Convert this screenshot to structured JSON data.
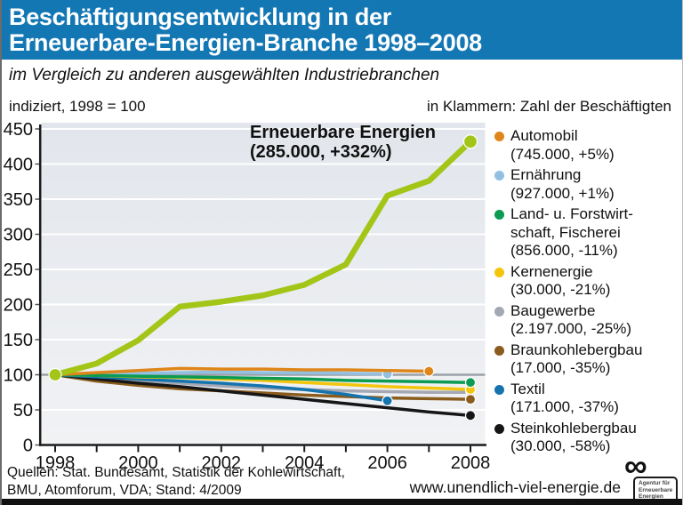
{
  "header": {
    "title_line1": "Beschäftigungsentwicklung in der",
    "title_line2": "Erneuerbare-Energien-Branche 1998–2008",
    "bg_color": "#1377b4"
  },
  "subtitle": "im Vergleich zu anderen ausgewählten Industriebranchen",
  "meta": {
    "left": "indiziert, 1998 = 100",
    "right": "in Klammern: Zahl  der Beschäftigten"
  },
  "annotation": {
    "line1": "Erneuerbare Energien",
    "line2": "(285.000, +332%)"
  },
  "chart_data": {
    "type": "line",
    "x": [
      1998,
      1999,
      2000,
      2001,
      2002,
      2003,
      2004,
      2005,
      2006,
      2007,
      2008
    ],
    "x_tick_labels": [
      "1998",
      "2000",
      "2002",
      "2004",
      "2006",
      "2008"
    ],
    "ylim": [
      0,
      450
    ],
    "yticks": [
      0,
      50,
      100,
      150,
      200,
      250,
      300,
      350,
      400,
      450
    ],
    "baseline": 100,
    "grid": true,
    "legend_position": "right",
    "series": [
      {
        "name": "Ernährung",
        "color": "#92c0e2",
        "line_width": 3.5,
        "marker_r": 5.5,
        "values": [
          100,
          101,
          102,
          103,
          104,
          103,
          103,
          102,
          101
        ]
      },
      {
        "name": "Baugewerbe",
        "color": "#a4a8b4",
        "line_width": 3.5,
        "marker_r": 5,
        "values": [
          100,
          96,
          92,
          88,
          84,
          81,
          79,
          77,
          76,
          75,
          75
        ]
      },
      {
        "name": "Braunkohlebergbau",
        "color": "#8a5c1d",
        "line_width": 3.5,
        "marker_r": 5.5,
        "values": [
          100,
          91,
          85,
          80,
          77,
          74,
          71,
          69,
          67,
          66,
          65
        ]
      },
      {
        "name": "Steinkohlebergbau",
        "color": "#161616",
        "line_width": 3.5,
        "marker_r": 5.5,
        "values": [
          100,
          94,
          88,
          83,
          77,
          71,
          65,
          59,
          53,
          47,
          42
        ]
      },
      {
        "name": "Textil",
        "color": "#1573ae",
        "line_width": 3.5,
        "marker_r": 5.5,
        "values": [
          100,
          97,
          94,
          91,
          88,
          84,
          79,
          72,
          63
        ]
      },
      {
        "name": "Kernenergie",
        "color": "#f4c50d",
        "line_width": 3.5,
        "marker_r": 5.5,
        "values": [
          100,
          99,
          97,
          96,
          94,
          92,
          89,
          86,
          83,
          81,
          79
        ]
      },
      {
        "name": "Land- u. Forstwirtschaft, Fischerei",
        "color": "#0b9b53",
        "line_width": 3.5,
        "marker_r": 5.5,
        "values": [
          100,
          99,
          98,
          97,
          96,
          95,
          94,
          92,
          91,
          90,
          89
        ]
      },
      {
        "name": "Automobil",
        "color": "#df861a",
        "line_width": 3.5,
        "marker_r": 5.5,
        "values": [
          100,
          103,
          106,
          109,
          108,
          108,
          107,
          107,
          106,
          105
        ]
      },
      {
        "name": "Erneuerbare Energien",
        "color": "#a3c517",
        "line_width": 6.5,
        "marker_r": 7.5,
        "start_marker": true,
        "values": [
          100,
          116,
          149,
          197,
          204,
          213,
          228,
          257,
          355,
          376,
          432
        ]
      }
    ]
  },
  "legend": {
    "items": [
      {
        "label": "Automobil",
        "value": "(745.000, +5%)",
        "color": "#df861a"
      },
      {
        "label": "Ernährung",
        "value": "(927.000, +1%)",
        "color": "#92c0e2"
      },
      {
        "label": "Land- u. Forstwirt-\nschaft, Fischerei",
        "value": "(856.000, -11%)",
        "color": "#0b9b53"
      },
      {
        "label": "Kernenergie",
        "value": "(30.000, -21%)",
        "color": "#f4c50d"
      },
      {
        "label": "Baugewerbe",
        "value": "(2.197.000, -25%)",
        "color": "#a4a8b4"
      },
      {
        "label": "Braunkohlebergbau",
        "value": "(17.000, -35%)",
        "color": "#8a5c1d"
      },
      {
        "label": "Textil",
        "value": "(171.000, -37%)",
        "color": "#1573ae"
      },
      {
        "label": "Steinkohlebergbau",
        "value": "(30.000, -58%)",
        "color": "#161616"
      }
    ]
  },
  "footer": {
    "sources_line1": "Quellen: Stat. Bundesamt, Statistik der Kohlewirtschaft,",
    "sources_line2": "BMU, Atomforum, VDA; Stand: 4/2009",
    "url": "www.unendlich-viel-energie.de",
    "logo": {
      "symbol": "∞",
      "box_lines": [
        "Agentur für",
        "Erneuerbare",
        "Energien"
      ]
    }
  }
}
